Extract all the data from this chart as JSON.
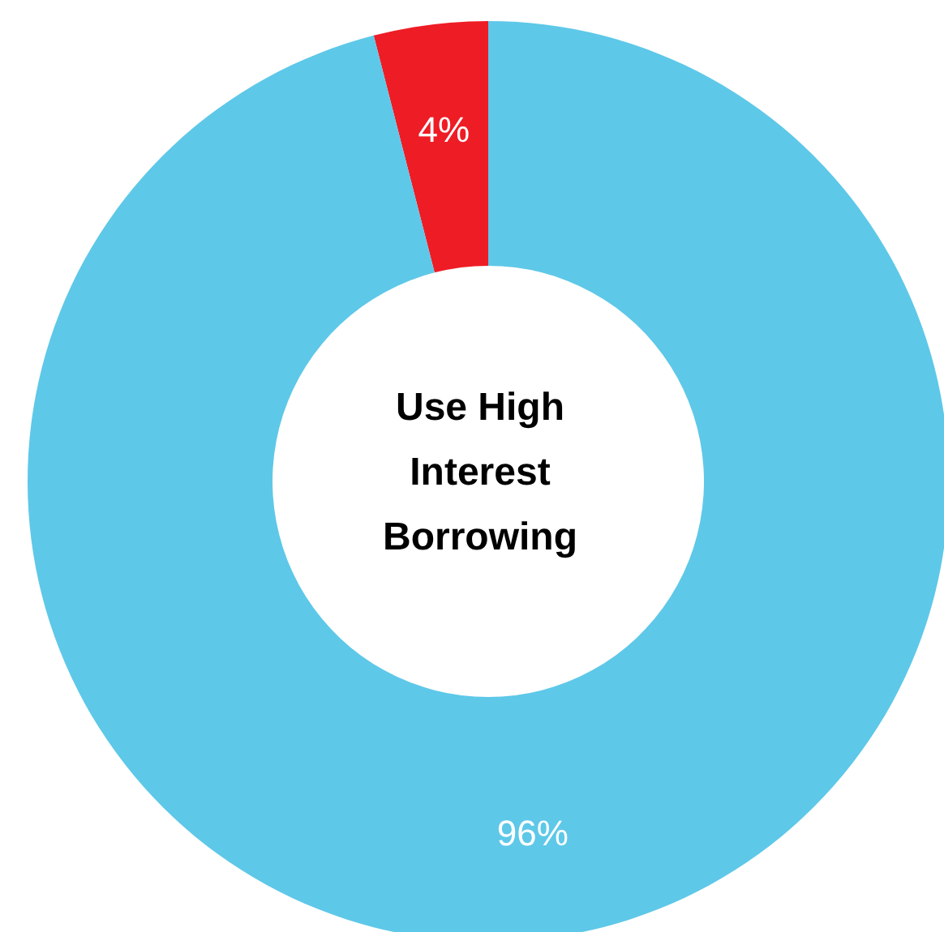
{
  "chart_data": {
    "type": "donut",
    "title": "Use High Interest Borrowing",
    "categories": [
      null,
      null
    ],
    "values": [
      4,
      96
    ],
    "colors": [
      "#ee1c25",
      "#5ec8e8"
    ],
    "value_labels": [
      "4%",
      "96%"
    ]
  }
}
